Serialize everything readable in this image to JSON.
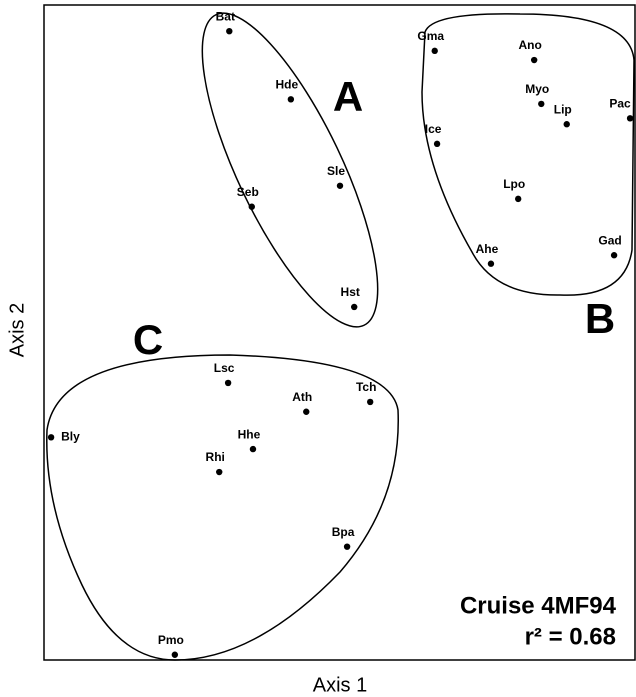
{
  "chart_data": {
    "type": "scatter",
    "xlabel": "Axis 1",
    "ylabel": "Axis 2",
    "xlim": [
      0,
      100
    ],
    "ylim": [
      0,
      100
    ],
    "labels": [
      "Bat",
      "Hde",
      "Sle",
      "Seb",
      "Hst",
      "Gma",
      "Ano",
      "Myo",
      "Lip",
      "Pac",
      "Ice",
      "Lpo",
      "Ahe",
      "Gad",
      "Lsc",
      "Ath",
      "Tch",
      "Bly",
      "Hhe",
      "Rhi",
      "Bpa",
      "Pmo"
    ],
    "x": [
      31.3,
      41.7,
      50.0,
      35.1,
      52.4,
      66.0,
      82.8,
      84.0,
      88.3,
      99.0,
      66.4,
      80.1,
      75.5,
      96.3,
      31.1,
      44.3,
      55.1,
      1.2,
      35.3,
      29.6,
      51.2,
      22.1
    ],
    "values": [
      96.0,
      85.6,
      72.4,
      69.2,
      53.9,
      93.0,
      91.6,
      84.9,
      81.8,
      82.7,
      78.8,
      70.4,
      60.5,
      61.8,
      42.3,
      37.9,
      39.4,
      34.0,
      32.2,
      28.7,
      17.3,
      0.8
    ],
    "color": "#000000",
    "groups": [
      "A",
      "B",
      "C"
    ],
    "annotations": [
      "Cruise 4MF94",
      "r² = 0.68"
    ]
  }
}
